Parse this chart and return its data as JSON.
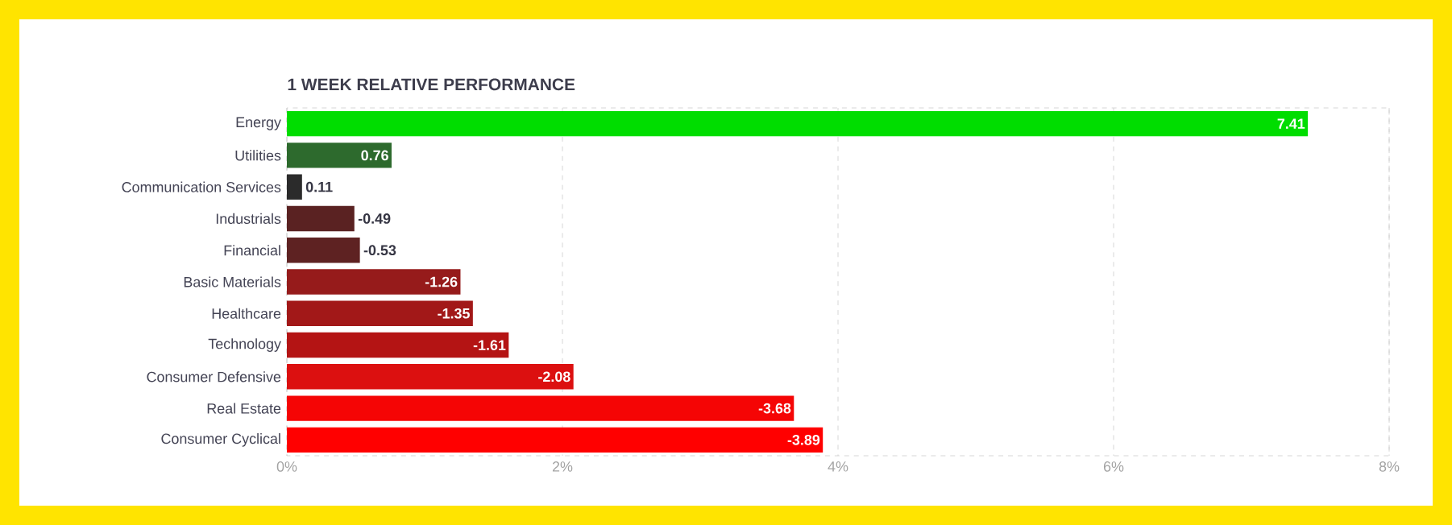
{
  "chart_data": {
    "type": "bar",
    "orientation": "horizontal",
    "title": "1 WEEK RELATIVE PERFORMANCE",
    "categories": [
      "Energy",
      "Utilities",
      "Communication Services",
      "Industrials",
      "Financial",
      "Basic Materials",
      "Healthcare",
      "Technology",
      "Consumer Defensive",
      "Real Estate",
      "Consumer Cyclical"
    ],
    "values": [
      7.41,
      0.76,
      0.11,
      -0.49,
      -0.53,
      -1.26,
      -1.35,
      -1.61,
      -2.08,
      -3.68,
      -3.89
    ],
    "base": [
      0,
      0,
      0,
      0.49,
      0.53,
      1.26,
      1.35,
      1.61,
      2.08,
      3.68,
      3.89
    ],
    "colors": [
      "#00dd00",
      "#2d6a2d",
      "#2b2b2b",
      "#5a2222",
      "#5e2222",
      "#961b1b",
      "#a21818",
      "#b41414",
      "#dc1010",
      "#f50505",
      "#ff0000"
    ],
    "xlim": [
      0,
      8
    ],
    "xticks": [
      {
        "value": 0,
        "label": "0%"
      },
      {
        "value": 2,
        "label": "2%"
      },
      {
        "value": 4,
        "label": "4%"
      },
      {
        "value": 6,
        "label": "6%"
      },
      {
        "value": 8,
        "label": "8%"
      }
    ],
    "grid": "x",
    "data_labels": true
  }
}
